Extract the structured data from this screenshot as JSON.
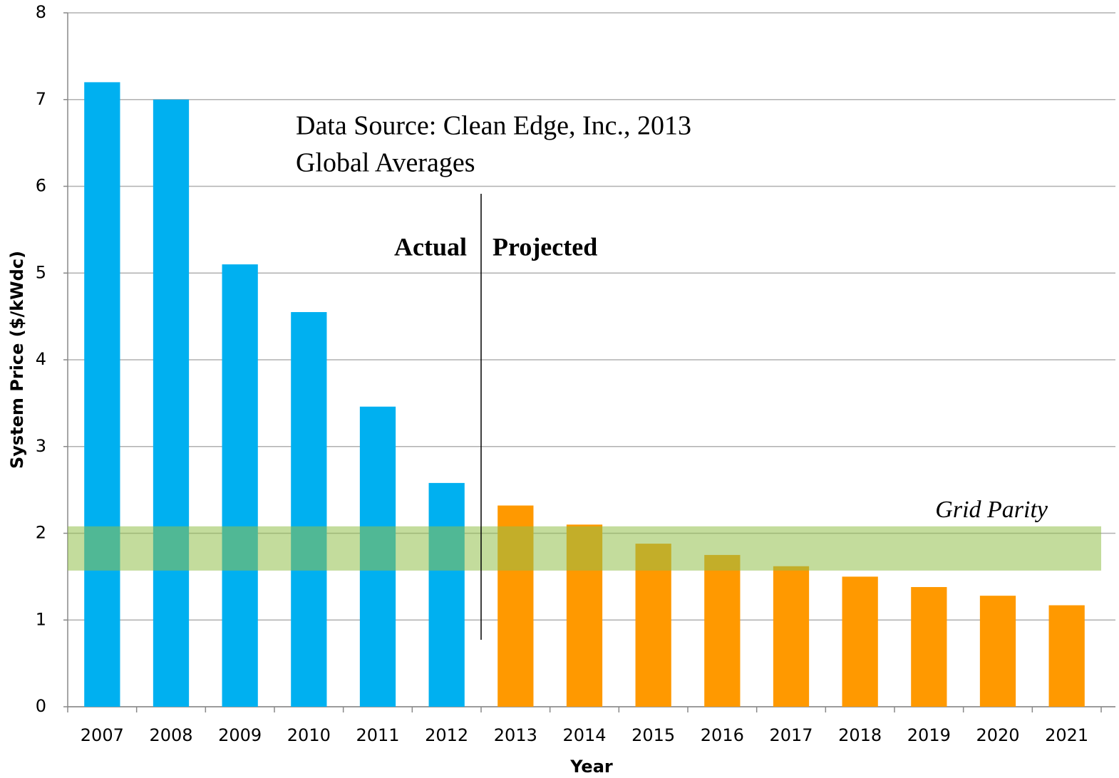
{
  "chart_data": {
    "type": "bar",
    "categories": [
      "2007",
      "2008",
      "2009",
      "2010",
      "2011",
      "2012",
      "2013",
      "2014",
      "2015",
      "2016",
      "2017",
      "2018",
      "2019",
      "2020",
      "2021"
    ],
    "series": [
      {
        "name": "Actual",
        "color": "#00b0f0",
        "values": [
          7.2,
          7.0,
          5.1,
          4.55,
          3.46,
          2.58,
          null,
          null,
          null,
          null,
          null,
          null,
          null,
          null,
          null
        ]
      },
      {
        "name": "Projected",
        "color": "#ff9900",
        "values": [
          null,
          null,
          null,
          null,
          null,
          null,
          2.32,
          2.1,
          1.88,
          1.75,
          1.62,
          1.5,
          1.38,
          1.28,
          1.17
        ]
      }
    ],
    "ylim": [
      0,
      8
    ],
    "yticks": [
      0,
      1,
      2,
      3,
      4,
      5,
      6,
      7,
      8
    ],
    "grid": true,
    "y_label": "System Price ($/kWdc)",
    "x_label": "Year",
    "annotations": [
      "Data Source: Clean Edge, Inc., 2013",
      "Global Averages"
    ],
    "band": {
      "label": "Grid Parity",
      "range": [
        1.57,
        2.08
      ],
      "color": "#92bf4a"
    }
  }
}
